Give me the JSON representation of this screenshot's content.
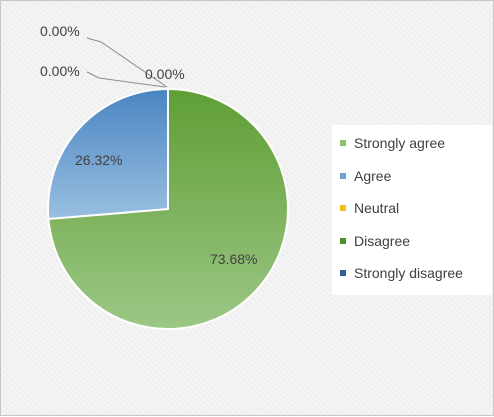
{
  "chart_data": {
    "type": "pie",
    "title": "",
    "categories": [
      "Strongly agree",
      "Agree",
      "Neutral",
      "Disagree",
      "Strongly disagree"
    ],
    "values": [
      73.68,
      26.32,
      0.0,
      0.0,
      0.0
    ],
    "labels": [
      "73.68%",
      "26.32%",
      "0.00%",
      "0.00%",
      "0.00%"
    ],
    "colors": [
      "#8dc06a",
      "#6fa1d3",
      "#f2be1e",
      "#4b8e2c",
      "#2d6291"
    ],
    "legend_position": "right"
  }
}
